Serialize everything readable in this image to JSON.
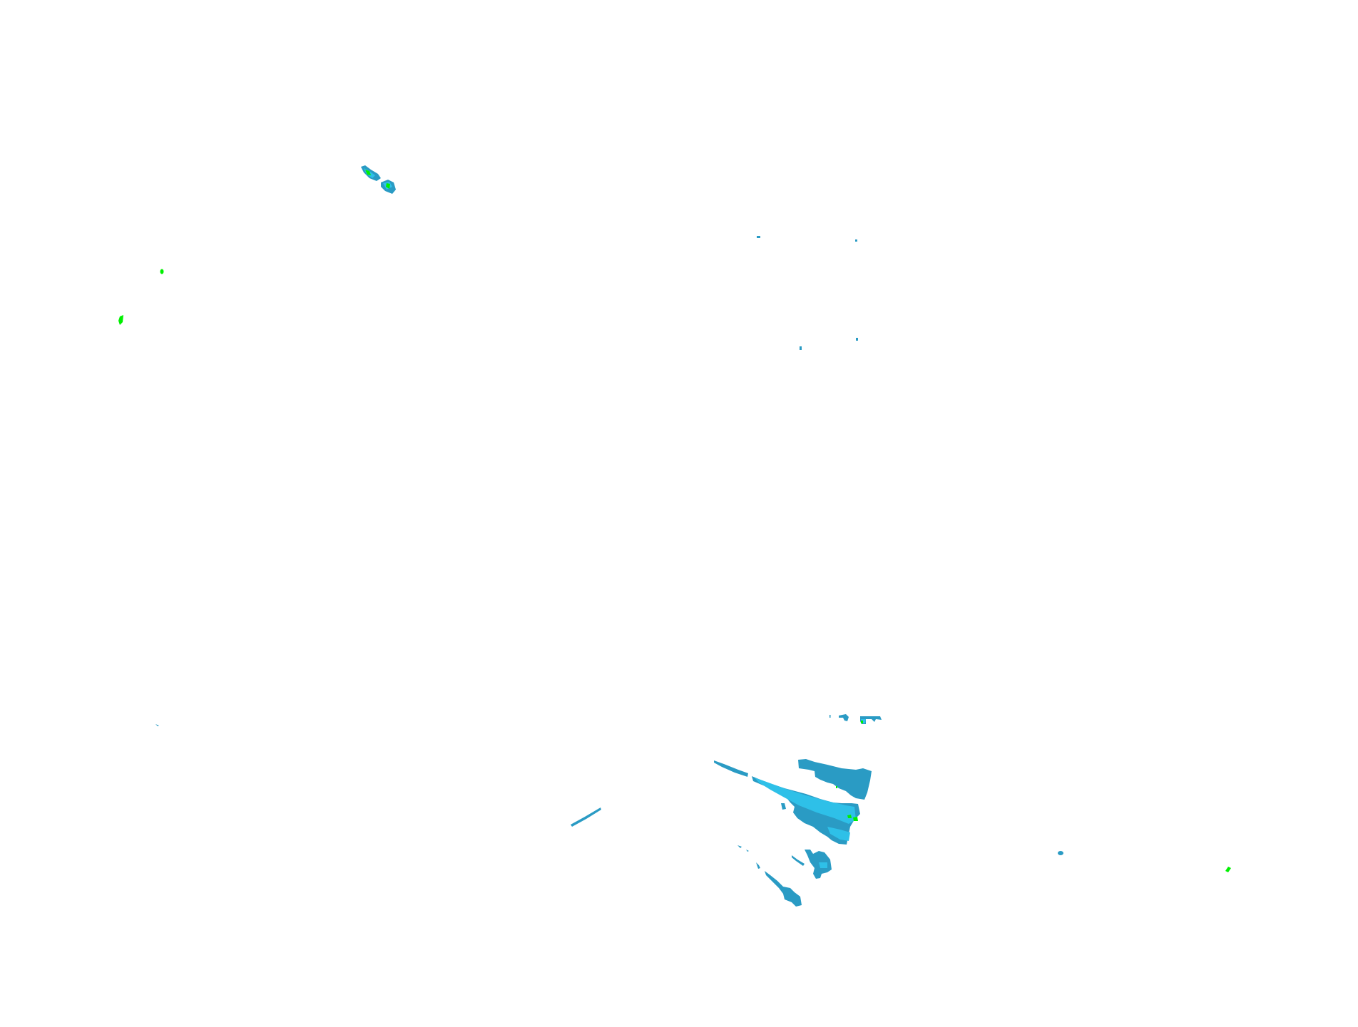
{
  "map": {
    "layer": "radar-reflectivity",
    "background_color": "#ffffff",
    "colors": {
      "low": "#2a9bc4",
      "medium": "#2ec0e8",
      "high": "#00f000"
    }
  }
}
